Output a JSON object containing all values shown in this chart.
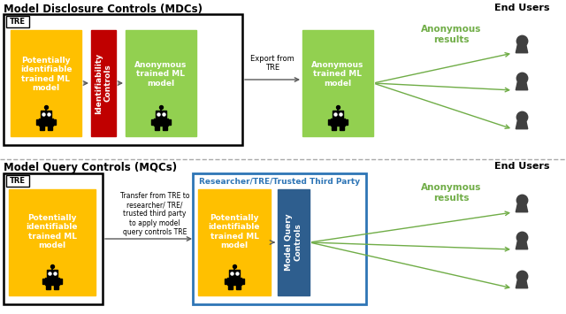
{
  "title_mdc": "Model Disclosure Controls (MDCs)",
  "title_mqc": "Model Query Controls (MQCs)",
  "end_users": "End Users",
  "anon_results": "Anonymous\nresults",
  "export_from_tre": "Export from\nTRE",
  "transfer_text": "Transfer from TRE to\nresearcher/ TRE/\ntrusted third party\nto apply model\nquery controls TRE",
  "researcher_label": "Researcher/TRE/Trusted Third Party",
  "tre_label": "TRE",
  "yellow_color": "#FFC000",
  "red_color": "#C00000",
  "green_color": "#92D050",
  "blue_color": "#2E5E8E",
  "blue_border": "#2E75B6",
  "white": "#FFFFFF",
  "black": "#000000",
  "light_green": "#70AD47",
  "gray_arrow": "#595959",
  "box1_text": "Potentially\nidentifiable\ntrained ML\nmodel",
  "box2_text": "Identifiability\nControls",
  "box3_text": "Anonymous\ntrained ML\nmodel",
  "box4_text": "Anonymous\ntrained ML\nmodel",
  "box5_text": "Potentially\nidentifiable\ntrained ML\nmodel",
  "box6_text": "Potentially\nidentifiable\ntrained ML\nmodel",
  "box7_text": "Model Query\nControls",
  "fig_w": 6.4,
  "fig_h": 3.55,
  "dpi": 100
}
